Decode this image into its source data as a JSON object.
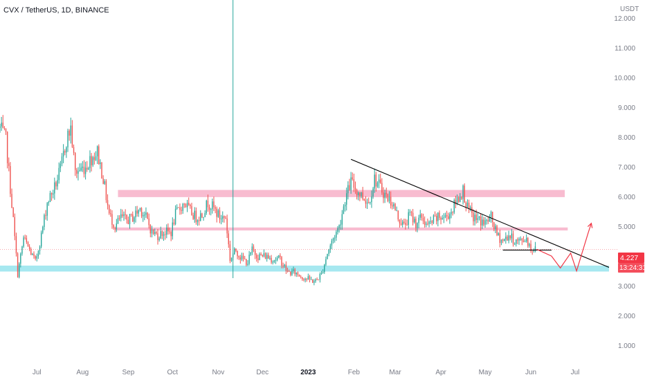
{
  "header": {
    "symbol_title": "CVX / TetherUS, 1D, BINANCE",
    "currency": "USDT"
  },
  "price_tag": {
    "price": "4.227",
    "countdown": "13:24:31",
    "value": 4.227
  },
  "colors": {
    "up": "#26a69a",
    "down": "#ef5350",
    "resistance_zone": "#f48fb1",
    "support_zone": "#80deea",
    "trendline": "#000000",
    "projection": "#f23645",
    "price_line": "#f23645"
  },
  "chart_data": {
    "type": "candlestick",
    "title": "CVX / TetherUS, 1D, BINANCE",
    "ylabel": "USDT",
    "y_ticks": [
      "1.000",
      "2.000",
      "3.000",
      "4.000",
      "5.000",
      "6.000",
      "7.000",
      "8.000",
      "9.000",
      "10.000",
      "11.000",
      "12.000"
    ],
    "y_tick_values": [
      1,
      2,
      3,
      4,
      5,
      6,
      7,
      8,
      9,
      10,
      11,
      12
    ],
    "ylim": [
      0.4,
      12.6
    ],
    "x_ticks": [
      "Jul",
      "Aug",
      "Sep",
      "Oct",
      "Nov",
      "Dec",
      "2023",
      "Feb",
      "Mar",
      "Apr",
      "May",
      "Jun",
      "Jul"
    ],
    "x_tick_dates": [
      "2022-07-01",
      "2022-08-01",
      "2022-09-01",
      "2022-10-01",
      "2022-11-01",
      "2022-12-01",
      "2023-01-01",
      "2023-02-01",
      "2023-03-01",
      "2023-04-01",
      "2023-05-01",
      "2023-06-01",
      "2023-07-01"
    ],
    "xlim": [
      "2022-06-06",
      "2023-07-24"
    ],
    "series": [
      {
        "type": "line",
        "points": [
          [
            "2022-06-06",
            8.3
          ],
          [
            "2022-06-10",
            7.9
          ],
          [
            "2022-06-15",
            5.2
          ],
          [
            "2022-06-18",
            3.4
          ],
          [
            "2022-06-22",
            4.6
          ],
          [
            "2022-06-26",
            4.2
          ],
          [
            "2022-06-30",
            3.8
          ],
          [
            "2022-07-04",
            4.7
          ],
          [
            "2022-07-08",
            5.8
          ],
          [
            "2022-07-13",
            6.3
          ],
          [
            "2022-07-17",
            6.9
          ],
          [
            "2022-07-21",
            7.9
          ],
          [
            "2022-07-24",
            8.3
          ],
          [
            "2022-07-27",
            6.8
          ],
          [
            "2022-07-30",
            6.9
          ],
          [
            "2022-08-03",
            7.0
          ],
          [
            "2022-08-07",
            7.3
          ],
          [
            "2022-08-11",
            7.5
          ],
          [
            "2022-08-15",
            6.6
          ],
          [
            "2022-08-19",
            5.4
          ],
          [
            "2022-08-23",
            5.0
          ],
          [
            "2022-08-27",
            5.3
          ],
          [
            "2022-08-31",
            5.2
          ],
          [
            "2022-09-04",
            5.3
          ],
          [
            "2022-09-09",
            5.6
          ],
          [
            "2022-09-13",
            5.3
          ],
          [
            "2022-09-17",
            4.8
          ],
          [
            "2022-09-21",
            4.7
          ],
          [
            "2022-09-25",
            4.8
          ],
          [
            "2022-09-30",
            4.8
          ],
          [
            "2022-10-03",
            5.4
          ],
          [
            "2022-10-06",
            5.6
          ],
          [
            "2022-10-09",
            5.8
          ],
          [
            "2022-10-13",
            5.5
          ],
          [
            "2022-10-17",
            5.3
          ],
          [
            "2022-10-21",
            5.4
          ],
          [
            "2022-10-25",
            5.8
          ],
          [
            "2022-10-29",
            5.6
          ],
          [
            "2022-11-02",
            5.3
          ],
          [
            "2022-11-06",
            5.3
          ],
          [
            "2022-11-09",
            3.9
          ],
          [
            "2022-11-13",
            4.2
          ],
          [
            "2022-11-17",
            3.9
          ],
          [
            "2022-11-21",
            3.8
          ],
          [
            "2022-11-24",
            4.2
          ],
          [
            "2022-11-28",
            4.0
          ],
          [
            "2022-12-03",
            4.0
          ],
          [
            "2022-12-08",
            3.9
          ],
          [
            "2022-12-13",
            3.9
          ],
          [
            "2022-12-18",
            3.45
          ],
          [
            "2022-12-23",
            3.45
          ],
          [
            "2022-12-28",
            3.3
          ],
          [
            "2023-01-02",
            3.2
          ],
          [
            "2023-01-06",
            3.15
          ],
          [
            "2023-01-10",
            3.4
          ],
          [
            "2023-01-14",
            4.1
          ],
          [
            "2023-01-18",
            4.6
          ],
          [
            "2023-01-22",
            5.0
          ],
          [
            "2023-01-26",
            5.9
          ],
          [
            "2023-01-30",
            6.5
          ],
          [
            "2023-02-03",
            6.2
          ],
          [
            "2023-02-07",
            6.0
          ],
          [
            "2023-02-11",
            5.8
          ],
          [
            "2023-02-15",
            6.6
          ],
          [
            "2023-02-19",
            6.3
          ],
          [
            "2023-02-23",
            6.0
          ],
          [
            "2023-02-27",
            5.8
          ],
          [
            "2023-03-03",
            5.3
          ],
          [
            "2023-03-07",
            5.0
          ],
          [
            "2023-03-11",
            5.4
          ],
          [
            "2023-03-15",
            5.1
          ],
          [
            "2023-03-19",
            5.3
          ],
          [
            "2023-03-23",
            5.0
          ],
          [
            "2023-03-27",
            5.2
          ],
          [
            "2023-03-31",
            5.3
          ],
          [
            "2023-04-04",
            5.3
          ],
          [
            "2023-04-08",
            5.5
          ],
          [
            "2023-04-12",
            5.9
          ],
          [
            "2023-04-16",
            6.2
          ],
          [
            "2023-04-19",
            5.6
          ],
          [
            "2023-04-23",
            5.3
          ],
          [
            "2023-04-27",
            5.2
          ],
          [
            "2023-05-01",
            5.1
          ],
          [
            "2023-05-05",
            5.3
          ],
          [
            "2023-05-09",
            4.7
          ],
          [
            "2023-05-13",
            4.5
          ],
          [
            "2023-05-17",
            4.7
          ],
          [
            "2023-05-21",
            4.5
          ],
          [
            "2023-05-25",
            4.5
          ],
          [
            "2023-05-29",
            4.6
          ],
          [
            "2023-06-01",
            4.25
          ],
          [
            "2023-06-05",
            4.227
          ]
        ]
      }
    ],
    "zones": [
      {
        "name": "resistance",
        "y_range": [
          5.98,
          6.22
        ],
        "x_range": [
          "2022-08-25",
          "2023-06-24"
        ]
      },
      {
        "name": "mid",
        "y_range": [
          4.86,
          4.96
        ],
        "x_range": [
          "2022-08-23",
          "2023-06-26"
        ]
      },
      {
        "name": "support",
        "y_range": [
          3.48,
          3.68
        ],
        "x_range": [
          "2022-06-06",
          "2023-07-24"
        ]
      }
    ],
    "trendlines": [
      {
        "from": [
          "2023-01-30",
          7.25
        ],
        "to": [
          "2023-07-24",
          3.62
        ]
      },
      {
        "from": [
          "2023-05-13",
          4.2
        ],
        "to": [
          "2023-06-15",
          4.2
        ]
      }
    ],
    "projection": [
      [
        "2023-06-05",
        4.227
      ],
      [
        "2023-06-15",
        4.0
      ],
      [
        "2023-06-21",
        3.6
      ],
      [
        "2023-06-28",
        4.1
      ],
      [
        "2023-07-02",
        3.5
      ],
      [
        "2023-07-10",
        4.8
      ],
      [
        "2023-07-12",
        5.1
      ]
    ],
    "vertical_marker": "2022-11-11"
  }
}
